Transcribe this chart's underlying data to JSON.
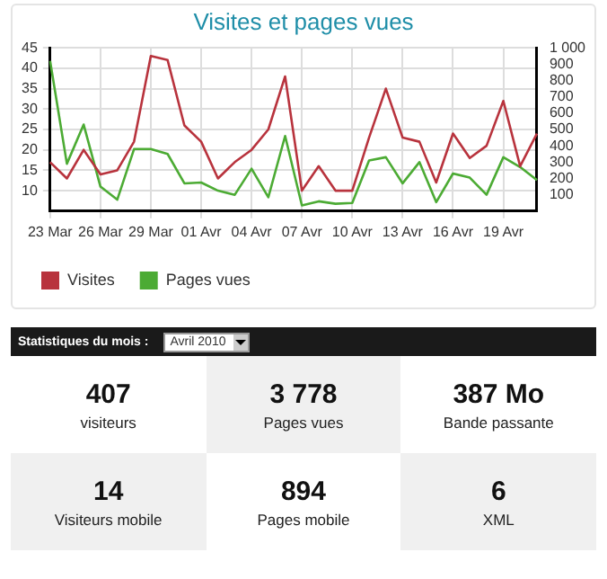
{
  "chart_data": [
    {
      "type": "line",
      "title": "Visites et pages vues",
      "categories": [
        "23 Mar",
        null,
        null,
        "26 Mar",
        null,
        null,
        "29 Mar",
        null,
        null,
        "01 Avr",
        null,
        null,
        "04 Avr",
        null,
        null,
        "07 Avr",
        null,
        null,
        "10 Avr",
        null,
        null,
        "13 Avr",
        null,
        null,
        "16 Avr",
        null,
        null,
        "19 Avr",
        null,
        null
      ],
      "series": [
        {
          "name": "Visites",
          "color": "#b8333d",
          "values": [
            17,
            13,
            20,
            14,
            15,
            22,
            43,
            42,
            26,
            22,
            13,
            17,
            20,
            25,
            38,
            10,
            16,
            10,
            10,
            23,
            35,
            23,
            22,
            12,
            24,
            18,
            21,
            32,
            16,
            24
          ]
        },
        {
          "name": "Pages vues",
          "color": "#4cab34",
          "axis": "y2",
          "values": [
            920,
            290,
            530,
            150,
            70,
            380,
            380,
            350,
            170,
            175,
            125,
            100,
            260,
            85,
            460,
            35,
            60,
            45,
            50,
            310,
            330,
            170,
            300,
            55,
            230,
            205,
            100,
            330,
            270,
            190
          ]
        }
      ],
      "ylim": [
        5,
        45
      ],
      "yticks": [
        10,
        15,
        20,
        25,
        30,
        35,
        40,
        45
      ],
      "y2lim": [
        0,
        1000
      ],
      "y2ticks": [
        100,
        200,
        300,
        400,
        500,
        600,
        700,
        800,
        900,
        {
          "value": 1000,
          "label": "1 000"
        }
      ],
      "grid": true,
      "legend": "bottom left",
      "marker": "none",
      "line_style": "solid"
    },
    {
      "type": "other",
      "title": "Statistiques du mois :",
      "annotations": [
        "Avril 2010",
        "407",
        "visiteurs",
        "3 778",
        "Pages vues",
        "387 Mo",
        "Bande passante",
        "14",
        "Visiteurs mobile",
        "894",
        "Pages mobile",
        "6",
        "XML"
      ]
    }
  ]
}
